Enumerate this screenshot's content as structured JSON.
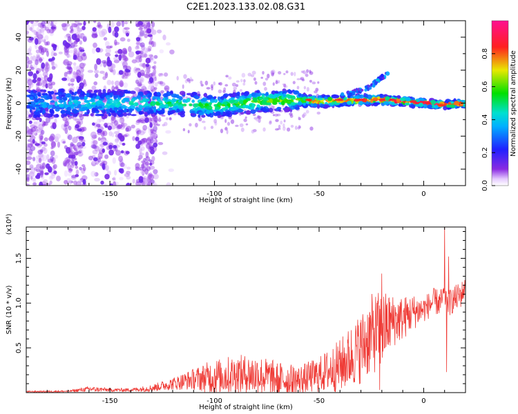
{
  "figure": {
    "title": "C2E1.2023.133.02.08.G31"
  },
  "chart_data": [
    {
      "type": "heatmap",
      "title": "C2E1.2023.133.02.08.G31",
      "xlabel": "Height of straight line (km)",
      "ylabel": "Frequency (Hz)",
      "xlim": [
        -190,
        20
      ],
      "ylim": [
        -50,
        50
      ],
      "xticks": [
        -150,
        -100,
        -50,
        0
      ],
      "yticks": [
        -40,
        -20,
        0,
        20,
        40
      ],
      "x_tick_labels": [
        "-150",
        "-100",
        "-50",
        "0"
      ],
      "y_tick_labels": [
        "-40",
        "-20",
        "0",
        "20",
        "40"
      ],
      "grid": false,
      "colorbar": {
        "label": "Normalized spectral amplitude",
        "range": [
          0,
          1
        ],
        "ticks": [
          "0.0",
          "0.2",
          "0.4",
          "0.6",
          "0.8"
        ],
        "colormap": "rainbow (purple-blue-cyan-green-yellow-red-magenta)"
      },
      "description_of_ridge": {
        "centre_frequency": [
          [
            -190,
            0
          ],
          [
            -160,
            0
          ],
          [
            -120,
            0
          ],
          [
            -100,
            -2
          ],
          [
            -80,
            1
          ],
          [
            -60,
            2
          ],
          [
            -50,
            1
          ],
          [
            -30,
            2
          ],
          [
            -20,
            2
          ],
          [
            -10,
            1
          ],
          [
            0,
            0
          ],
          [
            10,
            -1
          ],
          [
            20,
            0
          ]
        ],
        "spur": [
          [
            -40,
            4
          ],
          [
            -30,
            8
          ],
          [
            -25,
            10
          ],
          [
            -22,
            14
          ],
          [
            -17,
            18
          ]
        ]
      }
    },
    {
      "type": "line",
      "title": "",
      "xlabel": "Height of straight line (km)",
      "ylabel": "SNR (10 * v/v)",
      "y_multiplier_label": "(x10⁴)",
      "xlim": [
        -190,
        20
      ],
      "ylim": [
        0,
        18500
      ],
      "xticks": [
        -150,
        -100,
        -50,
        0
      ],
      "yticks": [
        5000,
        10000,
        15000
      ],
      "x_tick_labels": [
        "-150",
        "-100",
        "-50",
        "0"
      ],
      "y_tick_labels": [
        "0.5",
        "1.0",
        "1.5"
      ],
      "grid": false,
      "series": [
        {
          "color": "#ef3b36",
          "envelope_x": [
            -190,
            -170,
            -160,
            -150,
            -140,
            -130,
            -120,
            -110,
            -100,
            -90,
            -80,
            -70,
            -60,
            -50,
            -45,
            -40,
            -35,
            -30,
            -25,
            -20,
            -15,
            -10,
            -5,
            0,
            5,
            8,
            10,
            12,
            15,
            18,
            20
          ],
          "envelope_mean": [
            100,
            150,
            400,
            300,
            300,
            500,
            1000,
            1500,
            1800,
            2000,
            2000,
            1500,
            1400,
            2000,
            2500,
            3000,
            4000,
            5000,
            6500,
            7000,
            8000,
            8300,
            9000,
            9300,
            10200,
            10000,
            11000,
            10000,
            10500,
            11000,
            11800
          ],
          "envelope_amp": [
            80,
            100,
            300,
            200,
            200,
            400,
            700,
            1200,
            2000,
            2200,
            2300,
            2000,
            1600,
            2000,
            2500,
            3000,
            3500,
            4000,
            4500,
            4500,
            3000,
            2500,
            2000,
            1500,
            1500,
            1500,
            1500,
            1500,
            1500,
            1500,
            1000
          ],
          "peaks": [
            {
              "x": -20,
              "y": 13300
            },
            {
              "x": -21,
              "y": 300
            },
            {
              "x": 10,
              "y": 18500
            },
            {
              "x": 11,
              "y": 2300
            },
            {
              "x": 12,
              "y": 15200
            }
          ]
        }
      ]
    }
  ]
}
